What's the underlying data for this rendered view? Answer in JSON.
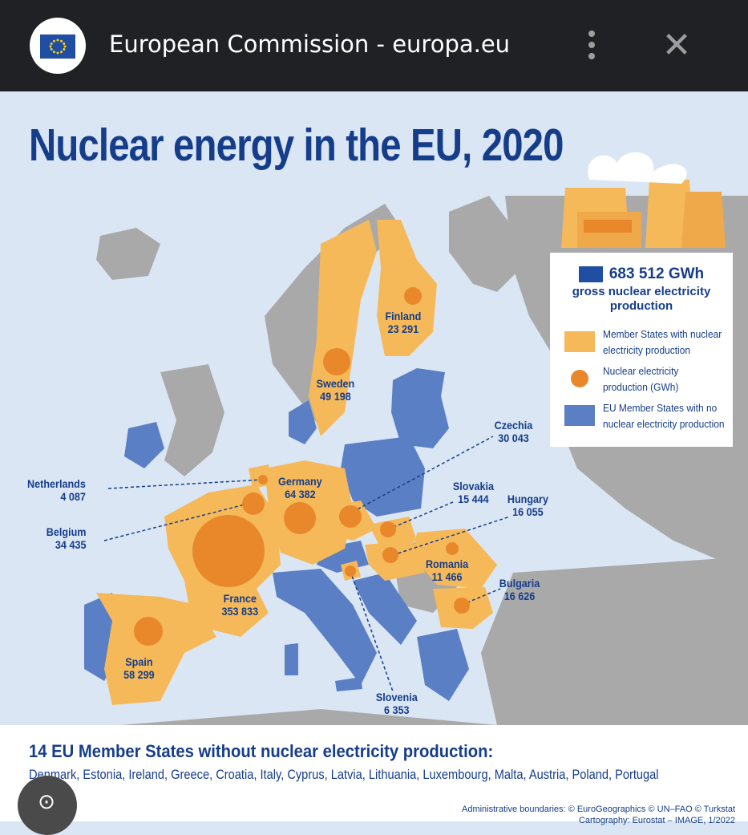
{
  "browser": {
    "title": "European Commission - europa.eu",
    "menu_icon": "more-vert-icon",
    "close_icon": "close-icon"
  },
  "infographic": {
    "title": "Nuclear energy in the EU, 2020",
    "legend": {
      "total": "683 512 GWh",
      "total_label": "gross nuclear electricity production",
      "items": [
        {
          "label": "Member States with nuclear electricity production",
          "color": "#f5b95a"
        },
        {
          "label": "Nuclear electricity production (GWh)",
          "color": "#e8882a"
        },
        {
          "label": "EU Member States with no nuclear electricity production",
          "color": "#5b7fc4"
        }
      ]
    },
    "countries": [
      {
        "name": "Finland",
        "value": "23 291"
      },
      {
        "name": "Sweden",
        "value": "49 198"
      },
      {
        "name": "Czechia",
        "value": "30 043"
      },
      {
        "name": "Netherlands",
        "value": "4 087"
      },
      {
        "name": "Germany",
        "value": "64 382"
      },
      {
        "name": "Slovakia",
        "value": "15 444"
      },
      {
        "name": "Hungary",
        "value": "16 055"
      },
      {
        "name": "Belgium",
        "value": "34 435"
      },
      {
        "name": "Romania",
        "value": "11 466"
      },
      {
        "name": "Bulgaria",
        "value": "16 626"
      },
      {
        "name": "France",
        "value": "353 833"
      },
      {
        "name": "Spain",
        "value": "58 299"
      },
      {
        "name": "Slovenia",
        "value": "6 353"
      }
    ],
    "without_heading": "14 EU Member States without nuclear electricity production:",
    "without_list": "Denmark, Estonia, Ireland, Greece, Croatia, Italy, Cyprus, Latvia, Lithuania, Luxembourg, Malta, Austria, Poland, Portugal",
    "credits_line1": "Administrative boundaries: © EuroGeographics © UN–FAO © Turkstat",
    "credits_line2": "Cartography: Eurostat – IMAGE, 1/2022"
  },
  "colors": {
    "nuclear_state": "#f5b95a",
    "production_dot": "#e8882a",
    "no_nuclear_state": "#5b7fc4",
    "non_eu": "#a9a9a9",
    "sea": "#dbe6f4",
    "title": "#153d8a"
  }
}
